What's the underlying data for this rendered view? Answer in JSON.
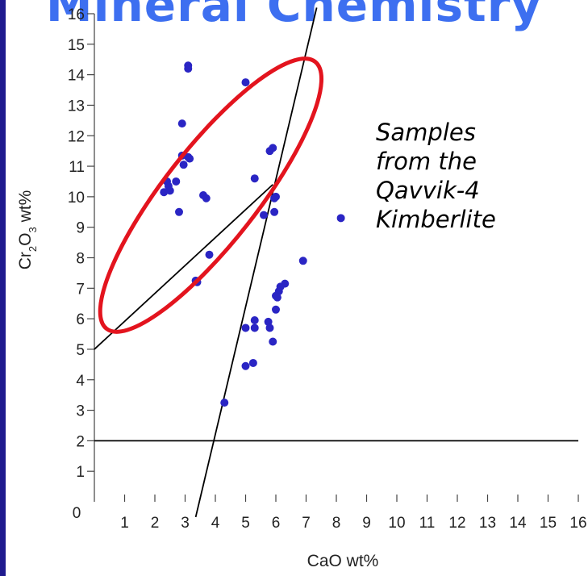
{
  "slide": {
    "title": "Mineral Chemistry",
    "frame_color": "#1f1a8e",
    "title_color": "#3d6ff0"
  },
  "annotation": {
    "lines": [
      "Samples",
      "from the",
      "Qavvik-4",
      "Kimberlite"
    ]
  },
  "chart_data": {
    "type": "scatter",
    "xlabel": "CaO wt%",
    "ylabel": {
      "main": "Cr",
      "sub1": "2",
      "mid": "O",
      "sub2": "3",
      "tail": " wt%"
    },
    "xlim": [
      0,
      16
    ],
    "ylim": [
      0,
      16
    ],
    "xticks": [
      1,
      2,
      3,
      4,
      5,
      6,
      7,
      8,
      9,
      10,
      11,
      12,
      13,
      14,
      15,
      16
    ],
    "yticks": [
      1,
      2,
      3,
      4,
      5,
      6,
      7,
      8,
      9,
      10,
      11,
      12,
      13,
      14,
      15,
      16
    ],
    "origin_label": "0",
    "grid": false,
    "point_color": "#2a25c4",
    "series": [
      {
        "points": [
          [
            3.1,
            14.3
          ],
          [
            3.1,
            14.2
          ],
          [
            5.0,
            13.75
          ],
          [
            2.9,
            12.4
          ],
          [
            2.9,
            11.35
          ],
          [
            3.1,
            11.3
          ],
          [
            3.15,
            11.25
          ],
          [
            2.95,
            11.05
          ],
          [
            5.8,
            11.5
          ],
          [
            5.9,
            11.6
          ],
          [
            5.3,
            10.6
          ],
          [
            6.0,
            10.0
          ],
          [
            5.95,
            9.95
          ],
          [
            3.6,
            10.05
          ],
          [
            3.7,
            9.95
          ],
          [
            2.4,
            10.5
          ],
          [
            2.45,
            10.35
          ],
          [
            2.7,
            10.5
          ],
          [
            2.3,
            10.15
          ],
          [
            2.5,
            10.2
          ],
          [
            2.8,
            9.5
          ],
          [
            5.6,
            9.4
          ],
          [
            5.95,
            9.5
          ],
          [
            8.15,
            9.3
          ],
          [
            3.8,
            8.1
          ],
          [
            6.9,
            7.9
          ],
          [
            3.35,
            7.25
          ],
          [
            3.4,
            7.2
          ],
          [
            6.3,
            7.15
          ],
          [
            6.15,
            7.05
          ],
          [
            6.1,
            6.9
          ],
          [
            6.0,
            6.75
          ],
          [
            6.05,
            6.7
          ],
          [
            6.0,
            6.3
          ],
          [
            5.3,
            5.95
          ],
          [
            5.3,
            5.7
          ],
          [
            5.75,
            5.9
          ],
          [
            5.8,
            5.7
          ],
          [
            5.0,
            5.7
          ],
          [
            5.9,
            5.25
          ],
          [
            5.25,
            4.55
          ],
          [
            5.0,
            4.45
          ],
          [
            4.3,
            3.25
          ]
        ]
      }
    ],
    "lines": [
      {
        "from": [
          0,
          2
        ],
        "to": [
          16,
          2
        ]
      },
      {
        "from": [
          3.35,
          -0.5
        ],
        "to": [
          7.35,
          16.2
        ]
      },
      {
        "from": [
          0,
          5.0
        ],
        "to": [
          5.9,
          10.4
        ]
      }
    ],
    "highlight_ellipse": {
      "cx": 3.85,
      "cy": 10.05,
      "rx": 5.6,
      "ry": 1.55,
      "angle_deg": 52,
      "color": "#e3141e"
    }
  }
}
